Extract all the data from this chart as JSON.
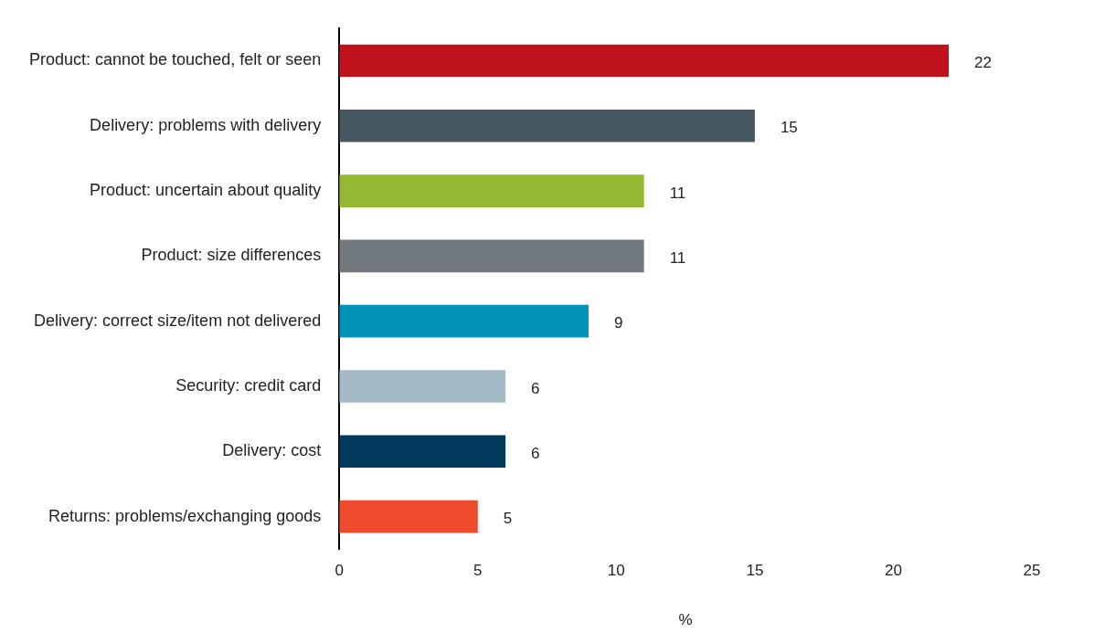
{
  "chart_data": {
    "type": "bar",
    "orientation": "horizontal",
    "xlabel": "%",
    "categories": [
      "Product: cannot be touched, felt or seen",
      "Delivery: problems with delivery",
      "Product: uncertain about quality",
      "Product: size differences",
      "Delivery: correct size/item not delivered",
      "Security: credit card",
      "Delivery: cost",
      "Returns: problems/exchanging goods"
    ],
    "values": [
      22,
      15,
      11,
      11,
      9,
      6,
      6,
      5
    ],
    "colors": [
      "#c0121c",
      "#475761",
      "#93b832",
      "#717880",
      "#0093b8",
      "#a3bac6",
      "#003a5c",
      "#ee4b2e"
    ],
    "xlim": [
      0,
      25
    ],
    "xticks": [
      0,
      5,
      10,
      15,
      20,
      25
    ],
    "grid": false,
    "legend": false,
    "data_labels": true
  }
}
